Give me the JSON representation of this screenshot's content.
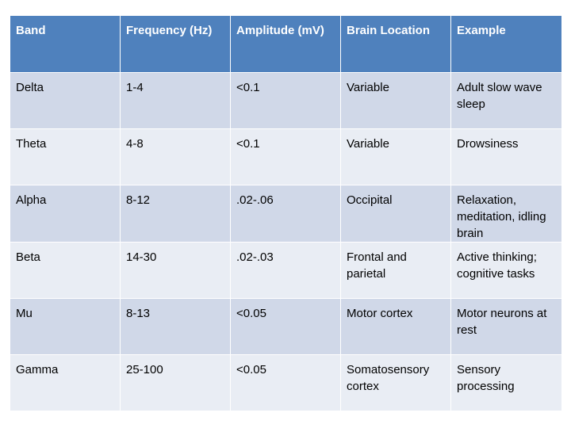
{
  "table": {
    "headers": [
      "Band",
      "Frequency (Hz)",
      "Amplitude (mV)",
      "Brain Location",
      "Example"
    ],
    "rows": [
      [
        "Delta",
        "1-4",
        "<0.1",
        "Variable",
        "Adult slow wave sleep"
      ],
      [
        "Theta",
        "4-8",
        "<0.1",
        "Variable",
        "Drowsiness"
      ],
      [
        "Alpha",
        "8-12",
        ".02-.06",
        "Occipital",
        "Relaxation, meditation, idling brain"
      ],
      [
        "Beta",
        "14-30",
        ".02-.03",
        "Frontal and parietal",
        "Active thinking; cognitive tasks"
      ],
      [
        "Mu",
        "8-13",
        "<0.05",
        "Motor cortex",
        "Motor neurons at rest"
      ],
      [
        "Gamma",
        "25-100",
        "<0.05",
        "Somatosensory cortex",
        "Sensory processing"
      ]
    ]
  },
  "colors": {
    "header_bg": "#4f81bd",
    "header_text": "#ffffff",
    "row_band_dark": "#d0d8e8",
    "row_band_light": "#e9edf4"
  }
}
